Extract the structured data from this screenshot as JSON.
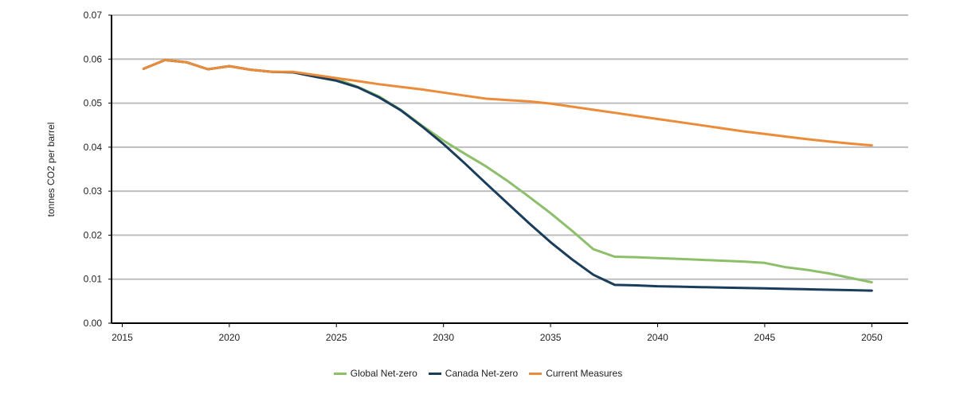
{
  "chart_data": {
    "type": "line",
    "title": "",
    "xlabel": "",
    "ylabel": "tonnes CO2 per barrel",
    "xlim": [
      2014.5,
      2051.7
    ],
    "ylim": [
      0,
      0.07
    ],
    "x_ticks": [
      2015,
      2020,
      2025,
      2030,
      2035,
      2040,
      2045,
      2050
    ],
    "y_ticks": [
      0.0,
      0.01,
      0.02,
      0.03,
      0.04,
      0.05,
      0.06,
      0.07
    ],
    "y_tick_labels": [
      "0.00",
      "0.01",
      "0.02",
      "0.03",
      "0.04",
      "0.05",
      "0.06",
      "0.07"
    ],
    "grid": "horizontal",
    "legend_position": "bottom",
    "series": [
      {
        "name": "Global Net-zero",
        "color": "#8dbf6a",
        "x": [
          2016,
          2017,
          2018,
          2019,
          2020,
          2021,
          2022,
          2023,
          2024,
          2025,
          2026,
          2027,
          2028,
          2029,
          2030,
          2031,
          2032,
          2033,
          2034,
          2035,
          2036,
          2037,
          2038,
          2039,
          2040,
          2041,
          2042,
          2043,
          2044,
          2045,
          2046,
          2047,
          2048,
          2049,
          2050
        ],
        "values": [
          0.0578,
          0.0598,
          0.0593,
          0.0577,
          0.0584,
          0.0576,
          0.0571,
          0.057,
          0.0562,
          0.0555,
          0.0537,
          0.0515,
          0.0485,
          0.0449,
          0.0415,
          0.0385,
          0.0356,
          0.0323,
          0.0287,
          0.025,
          0.021,
          0.0168,
          0.0151,
          0.015,
          0.0148,
          0.0146,
          0.0144,
          0.0142,
          0.014,
          0.0137,
          0.0127,
          0.0121,
          0.0113,
          0.0103,
          0.0093
        ]
      },
      {
        "name": "Canada Net-zero",
        "color": "#1a3d5c",
        "x": [
          2016,
          2017,
          2018,
          2019,
          2020,
          2021,
          2022,
          2023,
          2024,
          2025,
          2026,
          2027,
          2028,
          2029,
          2030,
          2031,
          2032,
          2033,
          2034,
          2035,
          2036,
          2037,
          2038,
          2039,
          2040,
          2041,
          2042,
          2043,
          2044,
          2045,
          2046,
          2047,
          2048,
          2049,
          2050
        ],
        "values": [
          0.0578,
          0.0598,
          0.0593,
          0.0577,
          0.0584,
          0.0576,
          0.0571,
          0.057,
          0.056,
          0.0551,
          0.0536,
          0.0513,
          0.0484,
          0.0447,
          0.0407,
          0.0363,
          0.0317,
          0.0272,
          0.0227,
          0.0184,
          0.0145,
          0.011,
          0.0087,
          0.0086,
          0.0084,
          0.0083,
          0.0082,
          0.0081,
          0.008,
          0.0079,
          0.0078,
          0.0077,
          0.0076,
          0.0075,
          0.0074
        ]
      },
      {
        "name": "Current Measures",
        "color": "#ec8b3a",
        "x": [
          2016,
          2017,
          2018,
          2019,
          2020,
          2021,
          2022,
          2023,
          2024,
          2025,
          2026,
          2027,
          2028,
          2029,
          2030,
          2031,
          2032,
          2033,
          2034,
          2035,
          2036,
          2037,
          2038,
          2039,
          2040,
          2041,
          2042,
          2043,
          2044,
          2045,
          2046,
          2047,
          2048,
          2049,
          2050
        ],
        "values": [
          0.0578,
          0.0598,
          0.0593,
          0.0577,
          0.0584,
          0.0576,
          0.0571,
          0.0571,
          0.0564,
          0.0557,
          0.055,
          0.0543,
          0.0537,
          0.0531,
          0.0524,
          0.0517,
          0.051,
          0.0507,
          0.0504,
          0.0499,
          0.0492,
          0.0485,
          0.0478,
          0.0471,
          0.0464,
          0.0457,
          0.045,
          0.0443,
          0.0436,
          0.043,
          0.0424,
          0.0418,
          0.0413,
          0.0408,
          0.0404
        ]
      }
    ]
  }
}
